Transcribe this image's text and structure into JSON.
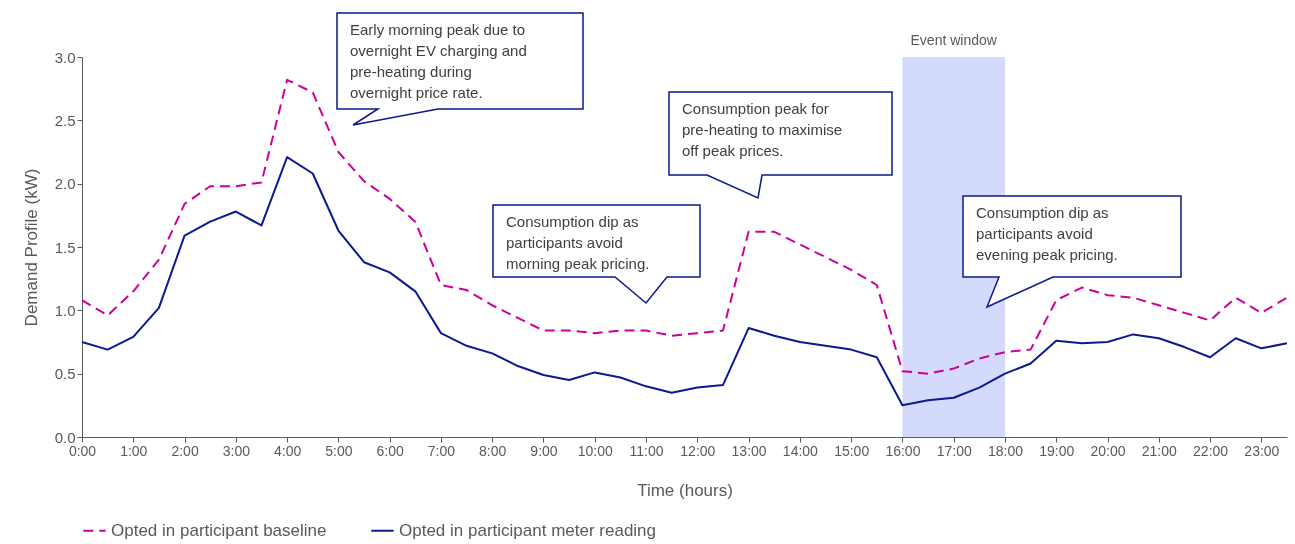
{
  "chart_data": {
    "type": "line",
    "xlabel": "Time (hours)",
    "ylabel": "Demand Profile (kW)",
    "x": [
      0,
      0.5,
      1,
      1.5,
      2,
      2.5,
      3,
      3.5,
      4,
      4.5,
      5,
      5.5,
      6,
      6.5,
      7,
      7.5,
      8,
      8.5,
      9,
      9.5,
      10,
      10.5,
      11,
      11.5,
      12,
      12.5,
      13,
      13.5,
      14,
      14.5,
      15,
      15.5,
      16,
      16.5,
      17,
      17.5,
      18,
      18.5,
      19,
      19.5,
      20,
      20.5,
      21,
      21.5,
      22,
      22.5,
      23,
      23.5
    ],
    "series": [
      {
        "name": "Opted in participant baseline",
        "color": "#cc0099",
        "line_style": "dashed",
        "values": [
          1.08,
          0.96,
          1.15,
          1.4,
          1.84,
          1.98,
          1.98,
          2.01,
          2.82,
          2.72,
          2.25,
          2.02,
          1.88,
          1.7,
          1.2,
          1.16,
          1.04,
          0.94,
          0.84,
          0.84,
          0.82,
          0.84,
          0.84,
          0.8,
          0.82,
          0.84,
          1.62,
          1.62,
          1.52,
          1.42,
          1.32,
          1.2,
          0.52,
          0.5,
          0.54,
          0.62,
          0.67,
          0.69,
          1.08,
          1.18,
          1.12,
          1.1,
          1.04,
          0.98,
          0.92,
          1.1,
          0.98,
          1.1
        ]
      },
      {
        "name": "Opted in participant meter reading",
        "color": "#0a1a8f",
        "line_style": "solid",
        "values": [
          0.75,
          0.69,
          0.79,
          1.02,
          1.59,
          1.7,
          1.78,
          1.67,
          2.21,
          2.08,
          1.63,
          1.38,
          1.3,
          1.15,
          0.82,
          0.72,
          0.66,
          0.56,
          0.49,
          0.45,
          0.51,
          0.47,
          0.4,
          0.35,
          0.39,
          0.41,
          0.86,
          0.8,
          0.75,
          0.72,
          0.69,
          0.63,
          0.25,
          0.29,
          0.31,
          0.39,
          0.5,
          0.58,
          0.76,
          0.74,
          0.75,
          0.81,
          0.78,
          0.71,
          0.63,
          0.78,
          0.7,
          0.74
        ]
      }
    ],
    "xlim": [
      0,
      23.5
    ],
    "xticks": [
      {
        "value": 0,
        "label": "0:00"
      },
      {
        "value": 1,
        "label": "1:00"
      },
      {
        "value": 2,
        "label": "2:00"
      },
      {
        "value": 3,
        "label": "3:00"
      },
      {
        "value": 4,
        "label": "4:00"
      },
      {
        "value": 5,
        "label": "5:00"
      },
      {
        "value": 6,
        "label": "6:00"
      },
      {
        "value": 7,
        "label": "7:00"
      },
      {
        "value": 8,
        "label": "8:00"
      },
      {
        "value": 9,
        "label": "9:00"
      },
      {
        "value": 10,
        "label": "10:00"
      },
      {
        "value": 11,
        "label": "11:00"
      },
      {
        "value": 12,
        "label": "12:00"
      },
      {
        "value": 13,
        "label": "13:00"
      },
      {
        "value": 14,
        "label": "14:00"
      },
      {
        "value": 15,
        "label": "15:00"
      },
      {
        "value": 16,
        "label": "16:00"
      },
      {
        "value": 17,
        "label": "17:00"
      },
      {
        "value": 18,
        "label": "18:00"
      },
      {
        "value": 19,
        "label": "19:00"
      },
      {
        "value": 20,
        "label": "20:00"
      },
      {
        "value": 21,
        "label": "21:00"
      },
      {
        "value": 22,
        "label": "22:00"
      },
      {
        "value": 23,
        "label": "23:00"
      }
    ],
    "ylim": [
      0,
      3
    ],
    "yticks": [
      {
        "value": 0,
        "label": "0.0"
      },
      0.5,
      {
        "value": 1,
        "label": "1.0"
      },
      1.5,
      {
        "value": 2,
        "label": "2.0"
      },
      2.5,
      {
        "value": 3,
        "label": "3.0"
      }
    ],
    "bands": [
      {
        "axis": "x",
        "from": 16,
        "to": 18,
        "label": "Event window",
        "color": "#d4dafc"
      }
    ],
    "annotations": [
      "Early morning peak due to overnight EV charging and pre-heating during overnight price rate.",
      "Consumption dip as participants avoid morning peak pricing.",
      "Consumption peak for pre-heating to maximise off peak prices.",
      "Consumption dip as participants avoid evening peak pricing."
    ],
    "grid": false,
    "legend": "bottom"
  }
}
